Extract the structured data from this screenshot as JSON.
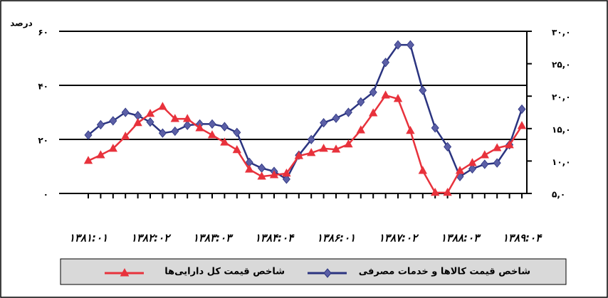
{
  "chart_data": {
    "type": "line",
    "y_label": "درصد",
    "categories": [
      "۱۳۸۱:۰۱",
      null,
      null,
      null,
      null,
      "۱۳۸۲:۰۲",
      null,
      null,
      null,
      null,
      "۱۳۸۳:۰۳",
      null,
      null,
      null,
      null,
      "۱۳۸۴:۰۴",
      null,
      null,
      null,
      null,
      "۱۳۸۶:۰۱",
      null,
      null,
      null,
      null,
      "۱۳۸۷:۰۲",
      null,
      null,
      null,
      null,
      "۱۳۸۸:۰۳",
      null,
      null,
      null,
      null,
      "۱۳۸۹:۰۴"
    ],
    "series": [
      {
        "name": "شاخص قیمت کالاها و خدمات مصرفی",
        "color": "#2b3480",
        "marker_color": "#5b5fa6",
        "marker": "diamond",
        "axis": "y2",
        "values": [
          14.0,
          15.6,
          16.2,
          17.5,
          17.0,
          16.0,
          14.3,
          14.6,
          15.5,
          15.7,
          15.7,
          15.3,
          14.4,
          9.8,
          8.9,
          8.4,
          7.2,
          10.9,
          13.3,
          15.9,
          16.6,
          17.5,
          19.1,
          20.6,
          25.2,
          27.9,
          27.9,
          20.9,
          15.1,
          12.2,
          7.6,
          8.8,
          9.5,
          9.7,
          12.5,
          18.0
        ]
      },
      {
        "name": "شاخص قیمت کل دارایی‌ها",
        "color": "#e8323c",
        "marker_color": "#e8323c",
        "marker": "triangle",
        "values": [
          12.1,
          14.2,
          16.6,
          21.1,
          26.1,
          29.5,
          32.1,
          27.6,
          27.6,
          24.2,
          21.6,
          18.9,
          16.1,
          8.9,
          6.3,
          6.8,
          7.4,
          13.9,
          15.0,
          16.6,
          16.3,
          18.2,
          23.4,
          29.7,
          36.3,
          35.0,
          23.2,
          8.4,
          0.3,
          0.3,
          8.4,
          11.3,
          14.2,
          16.8,
          17.9,
          25.0
        ]
      }
    ],
    "ylim": [
      0,
      60
    ],
    "yticks": [
      {
        "value": 0,
        "label": "۰"
      },
      {
        "value": 20,
        "label": "۲۰"
      },
      {
        "value": 40,
        "label": "۴۰"
      },
      {
        "value": 60,
        "label": "۶۰"
      }
    ],
    "y2lim": [
      5,
      30
    ],
    "y2ticks": [
      {
        "value": 5,
        "label": "۵,۰"
      },
      {
        "value": 10,
        "label": "۱۰,۰"
      },
      {
        "value": 15,
        "label": "۱۵,۰"
      },
      {
        "value": 20,
        "label": "۲۰,۰"
      },
      {
        "value": 25,
        "label": "۲۵,۰"
      },
      {
        "value": 30,
        "label": "۳۰,۰"
      }
    ],
    "grid": true,
    "legend": "bottom"
  }
}
